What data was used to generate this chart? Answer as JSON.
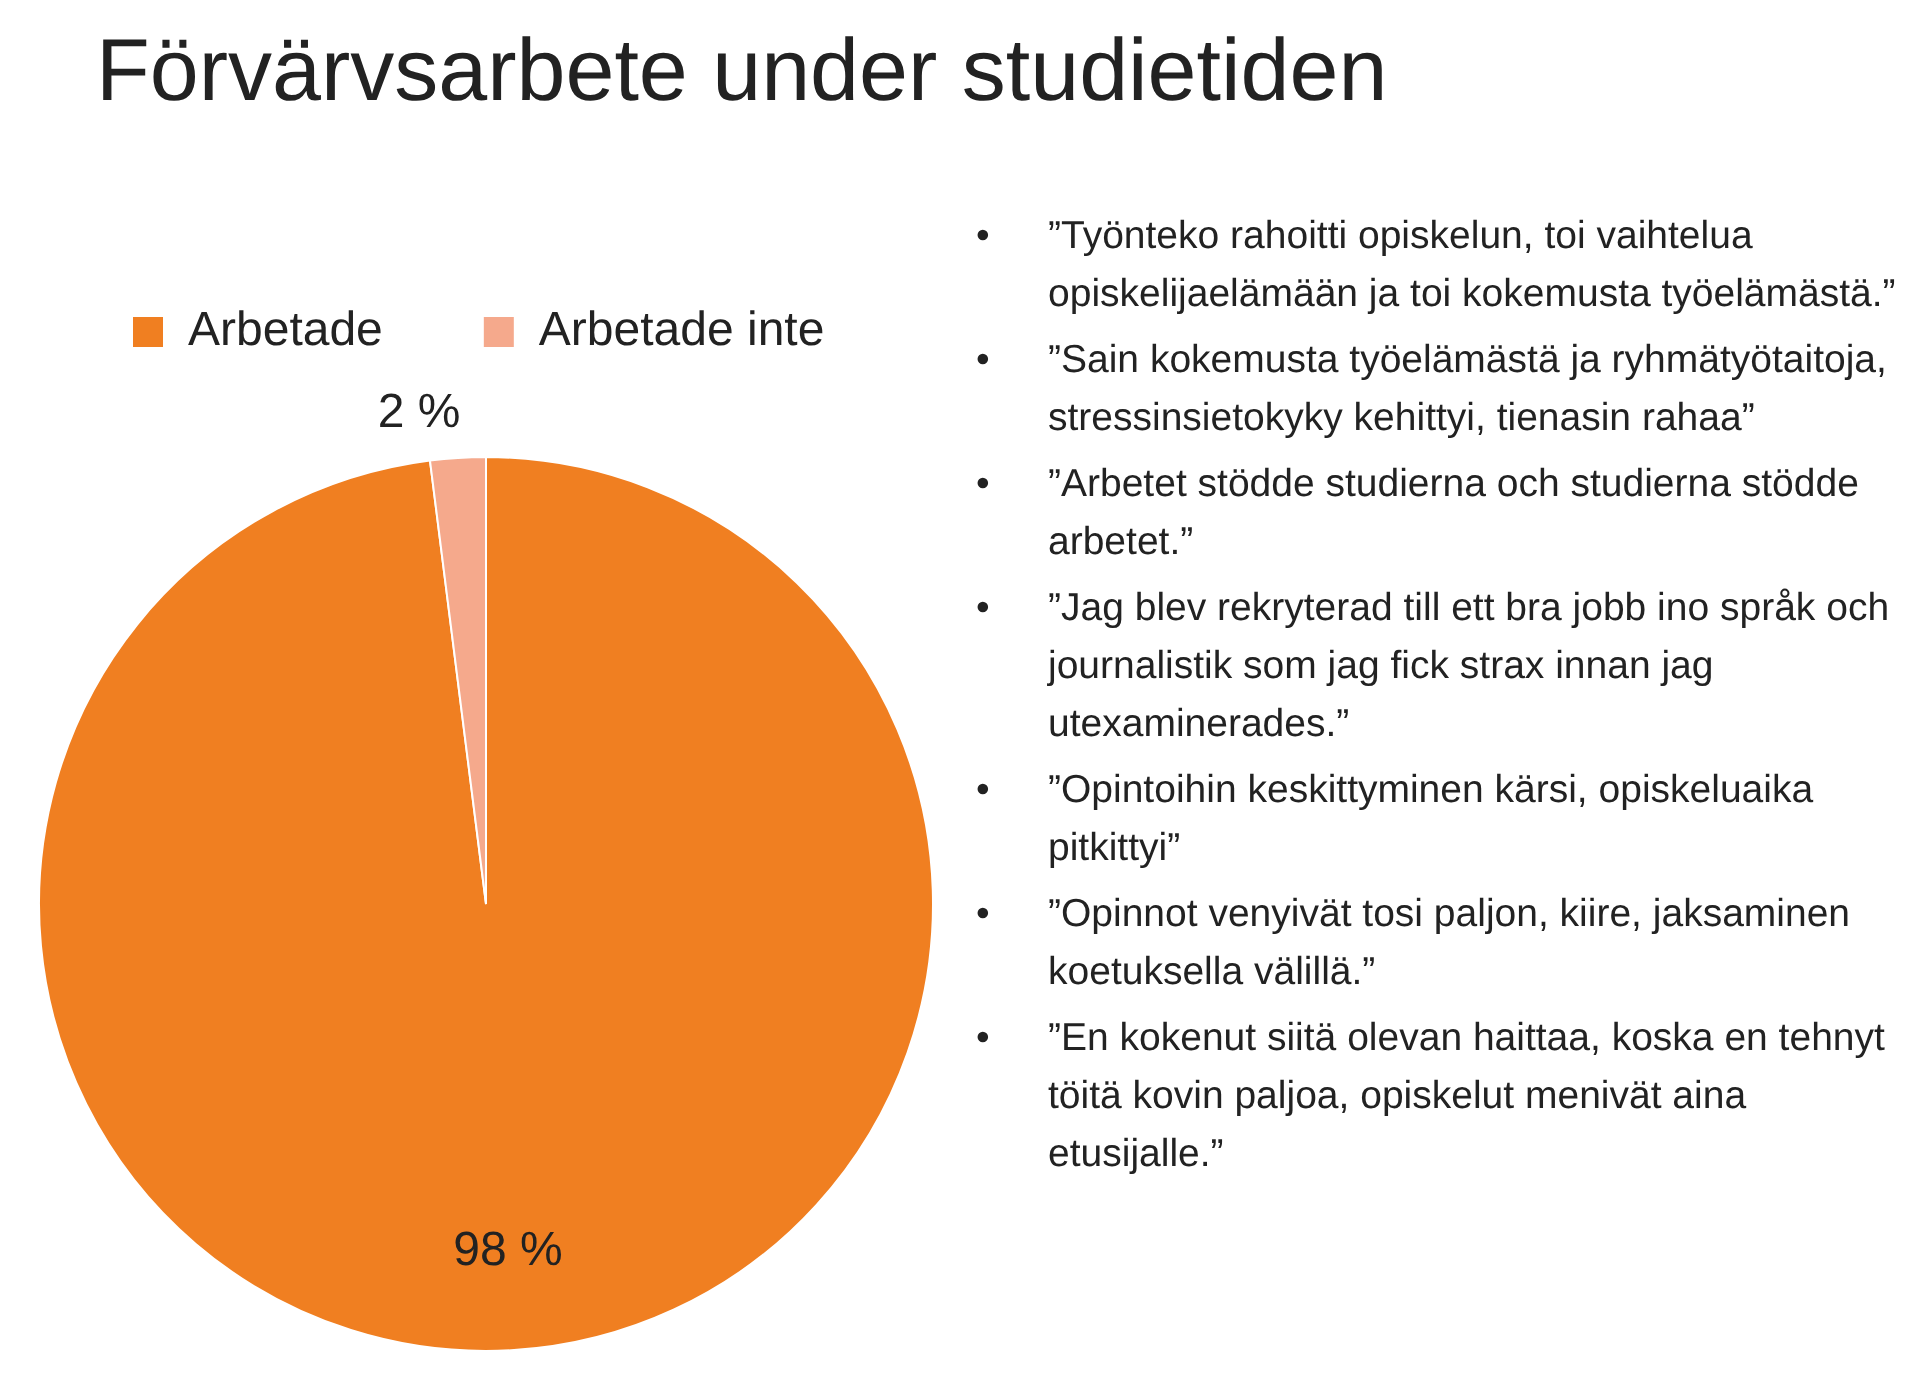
{
  "chart_data": {
    "type": "pie",
    "title": "Förvärvsarbete under studietiden",
    "categories": [
      "Arbetade",
      "Arbetade inte"
    ],
    "values": [
      98,
      2
    ],
    "colors": [
      "#f07f21",
      "#f5a98c"
    ],
    "value_labels": [
      "98 %",
      "2 %"
    ],
    "legend": "top left",
    "annotations": [
      "• ”Työnteko rahoitti opiskelun, toi vaihtelua opiskelijaelämään ja toi kokemusta työelämästä.”",
      "• ”Sain kokemusta työelämästä ja ryhmätyötaitoja, stressinsietokyky kehittyi, tienasin rahaa”",
      "• ”Arbetet stödde studierna och studierna stödde arbetet.”",
      "• ”Jag blev rekryterad till ett bra jobb ino språk och journalistik som jag fick strax innan jag utexaminerades.”",
      "• ”Opintoihin keskittyminen kärsi, opiskeluaika pitkittyi”",
      "• ”Opinnot venyivät tosi paljon, kiire, jaksaminen koetuksella välillä.”",
      "• ”En kokenut siitä olevan haittaa, koska en tehnyt töitä kovin paljoa, opiskelut menivät aina etusijalle.”"
    ]
  }
}
